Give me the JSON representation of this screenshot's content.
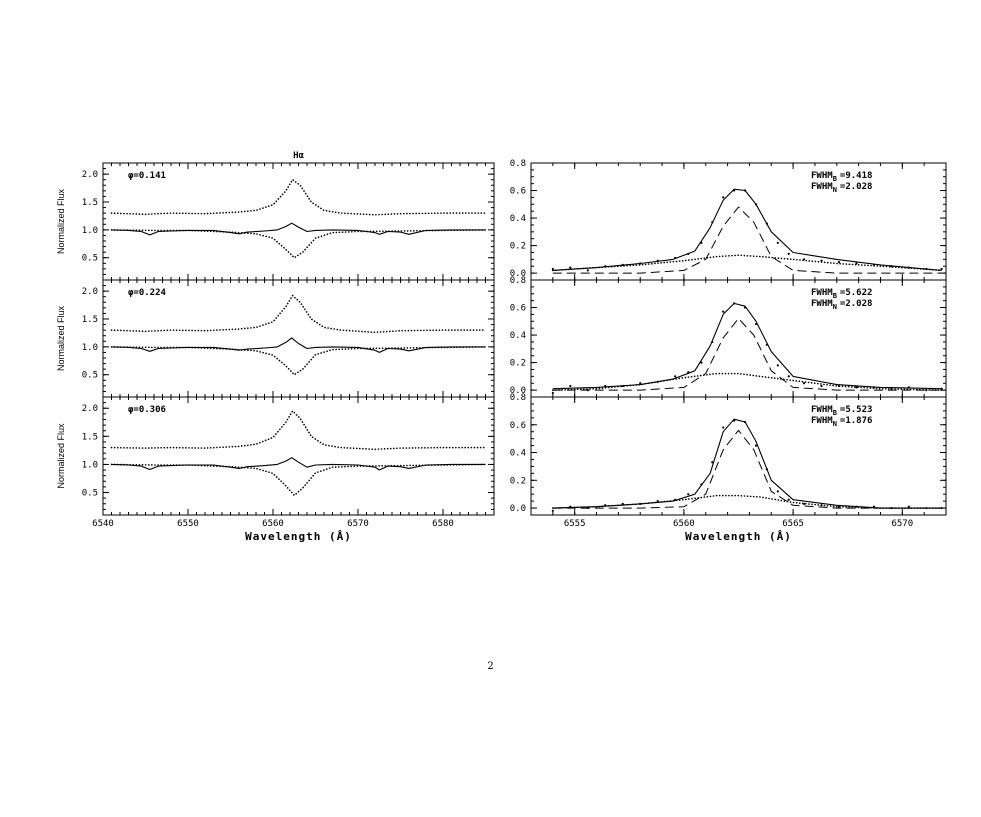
{
  "page": {
    "number": "2"
  },
  "chart_data": [
    {
      "type": "line",
      "title": "Hα",
      "ylabel": "Normalized Flux",
      "xlabel": "",
      "xlim": [
        6540,
        6586
      ],
      "ylim": [
        0.1,
        2.2
      ],
      "xticks": [
        "6540",
        "6550",
        "6560",
        "6570",
        "6580"
      ],
      "yticks": [
        "0.5",
        "1.0",
        "1.5",
        "2.0"
      ],
      "phase_label": "φ=0.141",
      "series": [
        {
          "style": "solid",
          "x": [
            6541,
            6543,
            6544.5,
            6545.5,
            6546.5,
            6548,
            6550,
            6553,
            6555,
            6556,
            6557,
            6559,
            6560.5,
            6561.5,
            6562.2,
            6563,
            6564,
            6565,
            6567,
            6570,
            6572,
            6572.5,
            6573.5,
            6575,
            6576,
            6578,
            6581,
            6585
          ],
          "y": [
            1.0,
            0.99,
            0.97,
            0.91,
            0.97,
            0.98,
            0.99,
            0.99,
            0.95,
            0.93,
            0.96,
            0.98,
            1.0,
            1.06,
            1.12,
            1.05,
            0.97,
            0.99,
            1.0,
            0.99,
            0.95,
            0.92,
            0.97,
            0.96,
            0.92,
            0.99,
            1.0,
            1.0
          ]
        },
        {
          "style": "dotted",
          "x": [
            6541,
            6546,
            6550,
            6555,
            6558,
            6560,
            6561.5,
            6562.5,
            6563.5,
            6565,
            6567,
            6570,
            6575,
            6585
          ],
          "y": [
            1.0,
            0.99,
            0.99,
            0.96,
            0.93,
            0.85,
            0.65,
            0.5,
            0.6,
            0.85,
            0.95,
            0.97,
            0.98,
            1.0
          ]
        },
        {
          "style": "dotted",
          "x": [
            6541,
            6545,
            6548,
            6552,
            6556,
            6558,
            6560,
            6561.5,
            6562.3,
            6563.2,
            6564.5,
            6566,
            6568,
            6572,
            6575,
            6580,
            6585
          ],
          "y": [
            1.3,
            1.28,
            1.3,
            1.29,
            1.32,
            1.35,
            1.45,
            1.7,
            1.9,
            1.8,
            1.5,
            1.35,
            1.3,
            1.27,
            1.29,
            1.3,
            1.3
          ]
        }
      ]
    },
    {
      "type": "line",
      "title": "",
      "ylabel": "Normalized Flux",
      "xlabel": "",
      "xlim": [
        6540,
        6586
      ],
      "ylim": [
        0.1,
        2.2
      ],
      "xticks": [
        "6540",
        "6550",
        "6560",
        "6570",
        "6580"
      ],
      "yticks": [
        "0.5",
        "1.0",
        "1.5",
        "2.0"
      ],
      "phase_label": "φ=0.224",
      "series": [
        {
          "style": "solid",
          "x": [
            6541,
            6543,
            6544.5,
            6545.5,
            6546.5,
            6548,
            6550,
            6553,
            6555,
            6556,
            6557,
            6559,
            6560.5,
            6561.5,
            6562.2,
            6563,
            6564,
            6565,
            6567,
            6570,
            6572,
            6572.5,
            6573.5,
            6575,
            6576,
            6578,
            6581,
            6585
          ],
          "y": [
            1.0,
            0.99,
            0.97,
            0.92,
            0.97,
            0.98,
            0.99,
            0.99,
            0.96,
            0.94,
            0.96,
            0.98,
            1.0,
            1.08,
            1.16,
            1.06,
            0.97,
            0.99,
            1.0,
            0.99,
            0.94,
            0.9,
            0.97,
            0.96,
            0.93,
            0.99,
            1.0,
            1.0
          ]
        },
        {
          "style": "dotted",
          "x": [
            6541,
            6546,
            6550,
            6555,
            6558,
            6560,
            6561.5,
            6562.5,
            6563.5,
            6565,
            6567,
            6570,
            6575,
            6585
          ],
          "y": [
            1.0,
            0.99,
            0.99,
            0.96,
            0.93,
            0.85,
            0.66,
            0.5,
            0.6,
            0.86,
            0.95,
            0.97,
            0.98,
            1.0
          ]
        },
        {
          "style": "dotted",
          "x": [
            6541,
            6545,
            6548,
            6552,
            6556,
            6558,
            6560,
            6561.5,
            6562.3,
            6563.2,
            6564.5,
            6566,
            6568,
            6572,
            6575,
            6580,
            6585
          ],
          "y": [
            1.3,
            1.28,
            1.3,
            1.29,
            1.32,
            1.35,
            1.45,
            1.72,
            1.92,
            1.8,
            1.5,
            1.35,
            1.3,
            1.26,
            1.29,
            1.3,
            1.3
          ]
        }
      ]
    },
    {
      "type": "line",
      "title": "",
      "ylabel": "Normalized Flux",
      "xlabel": "Wavelength (Å)",
      "xlim": [
        6540,
        6586
      ],
      "ylim": [
        0.1,
        2.2
      ],
      "xticks": [
        "6540",
        "6550",
        "6560",
        "6570",
        "6580"
      ],
      "yticks": [
        "0.5",
        "1.0",
        "1.5",
        "2.0"
      ],
      "phase_label": "φ=0.306",
      "series": [
        {
          "style": "solid",
          "x": [
            6541,
            6543,
            6544.5,
            6545.5,
            6546.5,
            6548,
            6550,
            6553,
            6555,
            6556,
            6557,
            6559,
            6560.5,
            6561.5,
            6562.2,
            6563,
            6564,
            6565,
            6567,
            6570,
            6572,
            6572.5,
            6573.5,
            6575,
            6576,
            6578,
            6581,
            6585
          ],
          "y": [
            1.0,
            0.99,
            0.97,
            0.91,
            0.97,
            0.98,
            0.99,
            0.99,
            0.95,
            0.93,
            0.96,
            0.98,
            1.0,
            1.06,
            1.12,
            1.04,
            0.95,
            0.99,
            1.0,
            0.99,
            0.95,
            0.9,
            0.97,
            0.96,
            0.93,
            0.99,
            1.0,
            1.0
          ]
        },
        {
          "style": "dotted",
          "x": [
            6541,
            6546,
            6550,
            6555,
            6558,
            6560,
            6561.5,
            6562.5,
            6563.5,
            6565,
            6567,
            6570,
            6575,
            6585
          ],
          "y": [
            1.0,
            0.99,
            0.99,
            0.96,
            0.93,
            0.84,
            0.62,
            0.45,
            0.58,
            0.85,
            0.95,
            0.97,
            0.98,
            1.0
          ]
        },
        {
          "style": "dotted",
          "x": [
            6541,
            6545,
            6548,
            6552,
            6556,
            6558,
            6560,
            6561.5,
            6562.3,
            6563.2,
            6564.5,
            6566,
            6568,
            6572,
            6575,
            6580,
            6585
          ],
          "y": [
            1.3,
            1.29,
            1.3,
            1.29,
            1.32,
            1.36,
            1.48,
            1.75,
            1.95,
            1.82,
            1.5,
            1.35,
            1.3,
            1.27,
            1.29,
            1.3,
            1.3
          ]
        }
      ]
    },
    {
      "type": "line",
      "title": "",
      "xlabel": "",
      "ylabel": "",
      "xlim": [
        6553,
        6572
      ],
      "ylim": [
        -0.05,
        0.8
      ],
      "xticks": [
        "6555",
        "6560",
        "6565",
        "6570"
      ],
      "yticks": [
        "0.0",
        "0.2",
        "0.4",
        "0.6",
        "0.8"
      ],
      "fwhm_b": "=9.418",
      "fwhm_n": "=2.028",
      "series": [
        {
          "style": "solid",
          "x": [
            6554,
            6556,
            6558,
            6559.5,
            6560.5,
            6561.2,
            6561.8,
            6562.3,
            6562.8,
            6563.3,
            6564,
            6565,
            6567,
            6569,
            6571.8
          ],
          "y": [
            0.02,
            0.04,
            0.07,
            0.1,
            0.16,
            0.33,
            0.53,
            0.61,
            0.6,
            0.5,
            0.3,
            0.15,
            0.1,
            0.06,
            0.02
          ]
        },
        {
          "style": "dashed",
          "x": [
            6554,
            6558,
            6560,
            6561,
            6561.8,
            6562.5,
            6563.2,
            6564,
            6565,
            6567,
            6571.8
          ],
          "y": [
            0.0,
            0.0,
            0.02,
            0.1,
            0.34,
            0.48,
            0.37,
            0.12,
            0.02,
            0.0,
            0.0
          ]
        },
        {
          "style": "dotted",
          "x": [
            6554,
            6556,
            6558,
            6560,
            6561.5,
            6562.5,
            6563.5,
            6565,
            6567,
            6569,
            6571.8
          ],
          "y": [
            0.02,
            0.04,
            0.06,
            0.09,
            0.12,
            0.13,
            0.12,
            0.1,
            0.07,
            0.05,
            0.02
          ]
        },
        {
          "style": "points",
          "x": [
            6554,
            6554.8,
            6555.6,
            6556.4,
            6557.2,
            6558,
            6558.8,
            6559.6,
            6560.2,
            6560.8,
            6561.3,
            6561.8,
            6562.3,
            6562.8,
            6563.3,
            6563.8,
            6564.3,
            6564.8,
            6565.5,
            6566.3,
            6567.1,
            6567.9,
            6568.7,
            6569.5,
            6570.3,
            6571.1,
            6571.8
          ],
          "y": [
            0.03,
            0.04,
            0.02,
            0.05,
            0.06,
            0.07,
            0.09,
            0.11,
            0.14,
            0.22,
            0.37,
            0.55,
            0.6,
            0.6,
            0.5,
            0.36,
            0.22,
            0.14,
            0.1,
            0.09,
            0.08,
            0.07,
            0.06,
            0.05,
            0.04,
            0.03,
            0.03
          ]
        }
      ]
    },
    {
      "type": "line",
      "title": "",
      "xlabel": "",
      "ylabel": "",
      "xlim": [
        6553,
        6572
      ],
      "ylim": [
        -0.05,
        0.8
      ],
      "xticks": [
        "6555",
        "6560",
        "6565",
        "6570"
      ],
      "yticks": [
        "0.0",
        "0.2",
        "0.4",
        "0.6",
        "0.8"
      ],
      "fwhm_b": "=5.622",
      "fwhm_n": "=2.028",
      "series": [
        {
          "style": "solid",
          "x": [
            6554,
            6556,
            6558,
            6559.5,
            6560.5,
            6561.2,
            6561.8,
            6562.3,
            6562.8,
            6563.3,
            6564,
            6565,
            6567,
            6569,
            6571.8
          ],
          "y": [
            0.01,
            0.02,
            0.04,
            0.08,
            0.14,
            0.32,
            0.55,
            0.63,
            0.61,
            0.5,
            0.28,
            0.1,
            0.04,
            0.02,
            0.01
          ]
        },
        {
          "style": "dashed",
          "x": [
            6554,
            6558,
            6560,
            6561,
            6561.8,
            6562.5,
            6563.2,
            6564,
            6565,
            6567,
            6571.8
          ],
          "y": [
            0.0,
            0.0,
            0.02,
            0.12,
            0.38,
            0.52,
            0.4,
            0.14,
            0.02,
            0.0,
            0.0
          ]
        },
        {
          "style": "dotted",
          "x": [
            6554,
            6556,
            6558,
            6560,
            6561.5,
            6562.5,
            6563.5,
            6565,
            6567,
            6569,
            6571.8
          ],
          "y": [
            0.0,
            0.01,
            0.04,
            0.09,
            0.12,
            0.12,
            0.1,
            0.07,
            0.03,
            0.01,
            0.0
          ]
        },
        {
          "style": "points",
          "x": [
            6554,
            6554.8,
            6555.6,
            6556.4,
            6557.2,
            6558,
            6558.8,
            6559.6,
            6560.2,
            6560.8,
            6561.3,
            6561.8,
            6562.3,
            6562.8,
            6563.3,
            6563.8,
            6564.3,
            6564.8,
            6565.5,
            6566.3,
            6567.1,
            6567.9,
            6568.7,
            6569.5,
            6570.3,
            6571.1,
            6571.8
          ],
          "y": [
            -0.02,
            0.03,
            0.0,
            0.03,
            0.03,
            0.05,
            0.06,
            0.1,
            0.13,
            0.2,
            0.35,
            0.57,
            0.63,
            0.6,
            0.48,
            0.33,
            0.18,
            0.1,
            0.05,
            0.03,
            0.03,
            0.02,
            0.02,
            0.01,
            0.02,
            0.0,
            0.01
          ]
        }
      ]
    },
    {
      "type": "line",
      "title": "",
      "xlabel": "Wavelength (Å)",
      "ylabel": "",
      "xlim": [
        6553,
        6572
      ],
      "ylim": [
        -0.05,
        0.8
      ],
      "xticks": [
        "6555",
        "6560",
        "6565",
        "6570"
      ],
      "yticks": [
        "0.0",
        "0.2",
        "0.4",
        "0.6",
        "0.8"
      ],
      "fwhm_b": "=5.523",
      "fwhm_n": "=1.876",
      "series": [
        {
          "style": "solid",
          "x": [
            6554,
            6556,
            6558,
            6559.5,
            6560.5,
            6561.2,
            6561.8,
            6562.3,
            6562.8,
            6563.3,
            6564,
            6565,
            6567,
            6569,
            6571.8
          ],
          "y": [
            0.0,
            0.01,
            0.03,
            0.05,
            0.1,
            0.25,
            0.55,
            0.64,
            0.62,
            0.48,
            0.2,
            0.06,
            0.02,
            0.0,
            0.0
          ]
        },
        {
          "style": "dashed",
          "x": [
            6554,
            6558,
            6560,
            6561,
            6561.8,
            6562.5,
            6563.2,
            6564,
            6565,
            6567,
            6571.8
          ],
          "y": [
            0.0,
            0.0,
            0.01,
            0.1,
            0.42,
            0.56,
            0.42,
            0.12,
            0.02,
            0.0,
            0.0
          ]
        },
        {
          "style": "dotted",
          "x": [
            6554,
            6556,
            6558,
            6560,
            6561.5,
            6562.5,
            6563.5,
            6565,
            6567,
            6569,
            6571.8
          ],
          "y": [
            0.0,
            0.01,
            0.03,
            0.06,
            0.09,
            0.09,
            0.08,
            0.04,
            0.01,
            0.0,
            0.0
          ]
        },
        {
          "style": "points",
          "x": [
            6554,
            6554.8,
            6555.6,
            6556.4,
            6557.2,
            6558,
            6558.8,
            6559.6,
            6560.2,
            6560.8,
            6561.3,
            6561.8,
            6562.3,
            6562.8,
            6563.3,
            6563.8,
            6564.3,
            6564.8,
            6565.5,
            6566.3,
            6567.1,
            6567.9,
            6568.7,
            6569.5,
            6570.3,
            6571.1,
            6571.8
          ],
          "y": [
            -0.02,
            0.01,
            0.0,
            0.02,
            0.03,
            0.03,
            0.05,
            0.06,
            0.1,
            0.17,
            0.33,
            0.58,
            0.63,
            0.62,
            0.45,
            0.28,
            0.12,
            0.06,
            0.03,
            0.02,
            0.01,
            0.01,
            0.01,
            0.0,
            0.01,
            0.0,
            0.0
          ]
        }
      ]
    }
  ]
}
